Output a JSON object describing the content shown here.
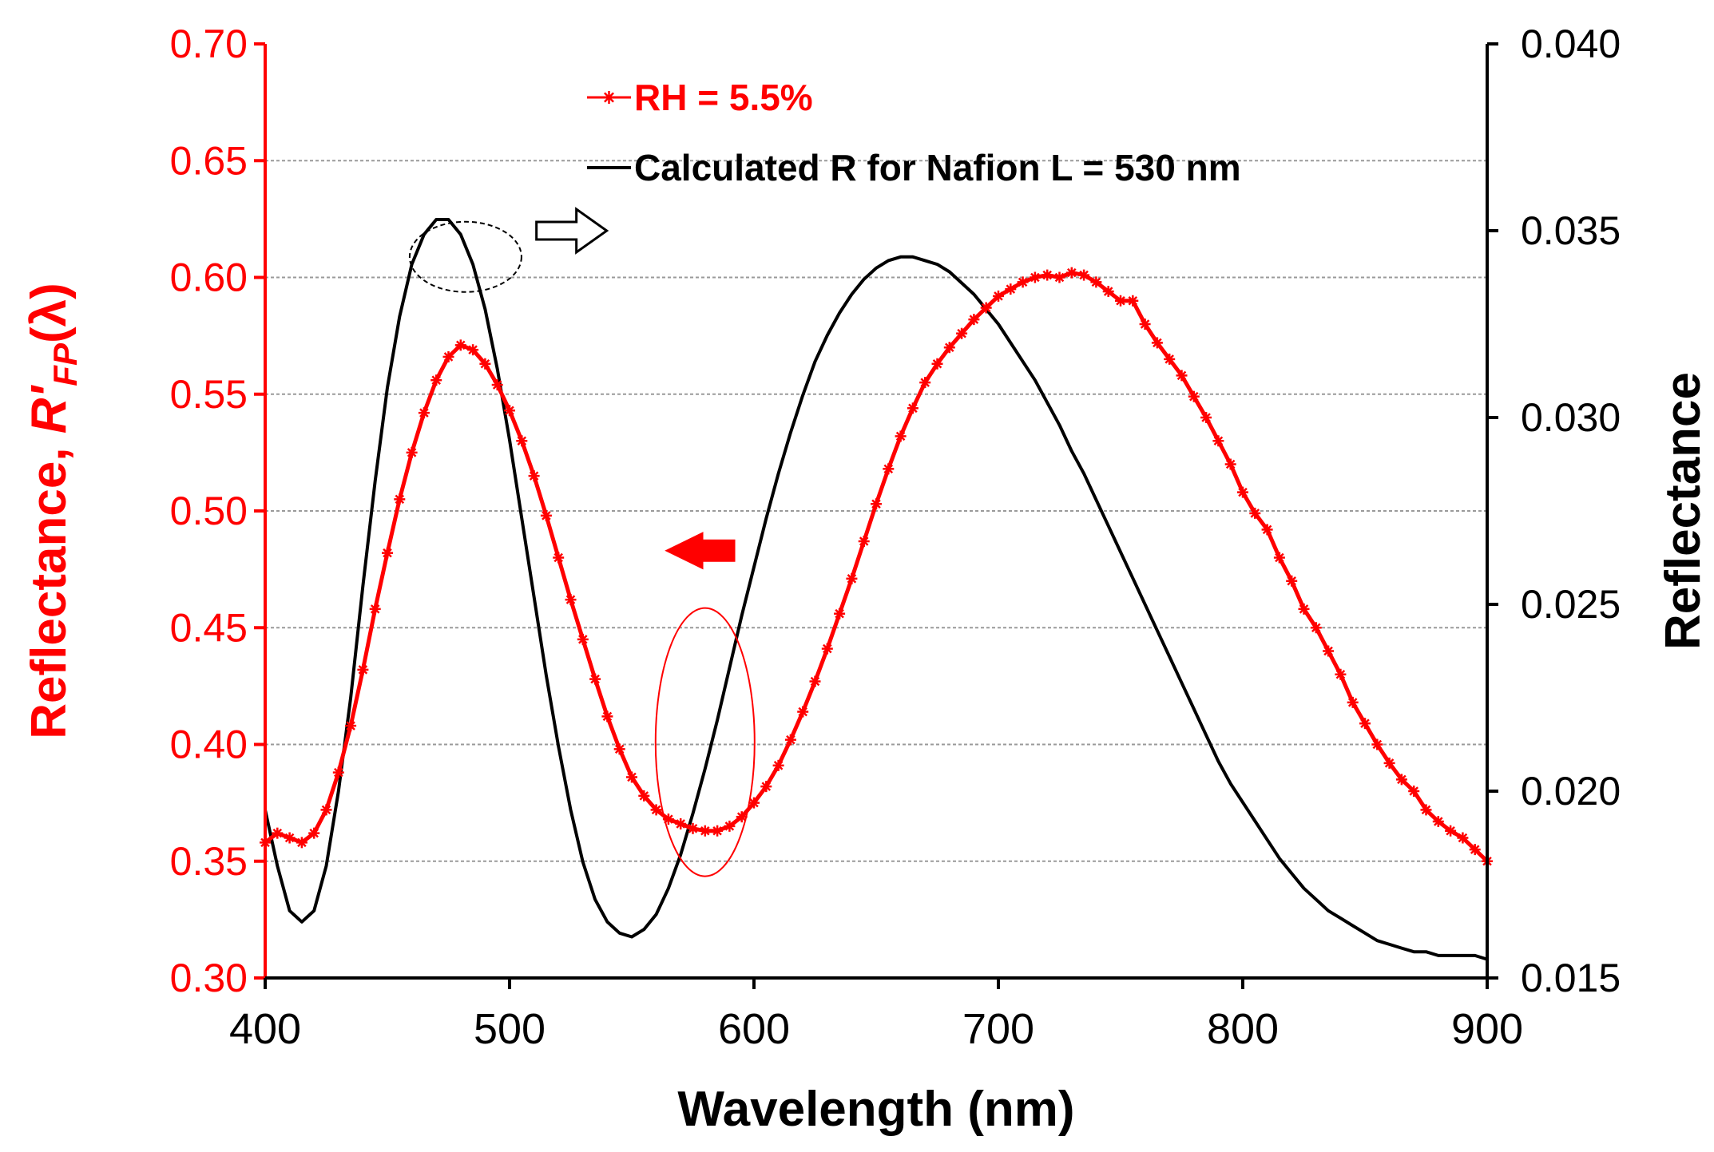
{
  "colors": {
    "measured": "#ff0000",
    "calculated": "#000000",
    "grid": "#9a9a9a",
    "left_axis": "#ff0000",
    "right_axis": "#000000"
  },
  "chart_data": {
    "type": "line",
    "title": "",
    "xlabel": "Wavelength (nm)",
    "ylabel_left": {
      "prefix": "Reflectance, ",
      "symbol": "R'",
      "subscript": "FP",
      "suffix": "(λ)"
    },
    "ylabel_right": "Reflectance",
    "xlim": [
      400,
      900
    ],
    "ylim_left": [
      0.3,
      0.7
    ],
    "ylim_right": [
      0.015,
      0.04
    ],
    "x_ticks": [
      {
        "value": 400,
        "label": "400"
      },
      {
        "value": 500,
        "label": "500"
      },
      {
        "value": 600,
        "label": "600"
      },
      {
        "value": 700,
        "label": "700"
      },
      {
        "value": 800,
        "label": "800"
      },
      {
        "value": 900,
        "label": "900"
      }
    ],
    "y_ticks_left": [
      {
        "value": 0.3,
        "label": "0.30"
      },
      {
        "value": 0.35,
        "label": "0.35"
      },
      {
        "value": 0.4,
        "label": "0.40"
      },
      {
        "value": 0.45,
        "label": "0.45"
      },
      {
        "value": 0.5,
        "label": "0.50"
      },
      {
        "value": 0.55,
        "label": "0.55"
      },
      {
        "value": 0.6,
        "label": "0.60"
      },
      {
        "value": 0.65,
        "label": "0.65"
      },
      {
        "value": 0.7,
        "label": "0.70"
      }
    ],
    "y_ticks_right": [
      {
        "value": 0.015,
        "label": "0.015"
      },
      {
        "value": 0.02,
        "label": "0.020"
      },
      {
        "value": 0.025,
        "label": "0.025"
      },
      {
        "value": 0.03,
        "label": "0.030"
      },
      {
        "value": 0.035,
        "label": "0.035"
      },
      {
        "value": 0.04,
        "label": "0.040"
      }
    ],
    "grid": "horizontal",
    "legend_position": "top-center",
    "series": [
      {
        "name": "RH = 5.5%",
        "axis": "left",
        "marker": "asterisk",
        "x": [
          400,
          405,
          410,
          415,
          420,
          425,
          430,
          435,
          440,
          445,
          450,
          455,
          460,
          465,
          470,
          475,
          480,
          485,
          490,
          495,
          500,
          505,
          510,
          515,
          520,
          525,
          530,
          535,
          540,
          545,
          550,
          555,
          560,
          565,
          570,
          575,
          580,
          585,
          590,
          595,
          600,
          605,
          610,
          615,
          620,
          625,
          630,
          635,
          640,
          645,
          650,
          655,
          660,
          665,
          670,
          675,
          680,
          685,
          690,
          695,
          700,
          705,
          710,
          715,
          720,
          725,
          730,
          735,
          740,
          745,
          750,
          755,
          760,
          765,
          770,
          775,
          780,
          785,
          790,
          795,
          800,
          805,
          810,
          815,
          820,
          825,
          830,
          835,
          840,
          845,
          850,
          855,
          860,
          865,
          870,
          875,
          880,
          885,
          890,
          895,
          900
        ],
        "y": [
          0.358,
          0.362,
          0.36,
          0.358,
          0.362,
          0.372,
          0.388,
          0.408,
          0.432,
          0.458,
          0.482,
          0.505,
          0.525,
          0.542,
          0.556,
          0.566,
          0.571,
          0.569,
          0.563,
          0.554,
          0.543,
          0.53,
          0.515,
          0.498,
          0.48,
          0.462,
          0.445,
          0.428,
          0.412,
          0.398,
          0.386,
          0.378,
          0.372,
          0.368,
          0.366,
          0.364,
          0.363,
          0.363,
          0.365,
          0.369,
          0.375,
          0.382,
          0.391,
          0.402,
          0.414,
          0.427,
          0.441,
          0.456,
          0.471,
          0.487,
          0.503,
          0.518,
          0.532,
          0.544,
          0.555,
          0.563,
          0.57,
          0.576,
          0.582,
          0.587,
          0.592,
          0.595,
          0.598,
          0.6,
          0.601,
          0.6,
          0.602,
          0.601,
          0.598,
          0.594,
          0.59,
          0.59,
          0.58,
          0.572,
          0.565,
          0.558,
          0.549,
          0.54,
          0.53,
          0.52,
          0.508,
          0.499,
          0.492,
          0.48,
          0.47,
          0.458,
          0.45,
          0.44,
          0.43,
          0.418,
          0.409,
          0.4,
          0.392,
          0.385,
          0.38,
          0.372,
          0.367,
          0.363,
          0.36,
          0.355,
          0.35
        ]
      },
      {
        "name": "Calculated R for Nafion L = 530 nm",
        "axis": "right",
        "marker": "none",
        "x": [
          400,
          405,
          410,
          415,
          420,
          425,
          430,
          435,
          440,
          445,
          450,
          455,
          460,
          465,
          470,
          475,
          480,
          485,
          490,
          495,
          500,
          505,
          510,
          515,
          520,
          525,
          530,
          535,
          540,
          545,
          550,
          555,
          560,
          565,
          570,
          575,
          580,
          585,
          590,
          595,
          600,
          605,
          610,
          615,
          620,
          625,
          630,
          635,
          640,
          645,
          650,
          655,
          660,
          665,
          670,
          675,
          680,
          685,
          690,
          695,
          700,
          705,
          710,
          715,
          720,
          725,
          730,
          735,
          740,
          745,
          750,
          755,
          760,
          765,
          770,
          775,
          780,
          785,
          790,
          795,
          800,
          805,
          810,
          815,
          820,
          825,
          830,
          835,
          840,
          845,
          850,
          855,
          860,
          865,
          870,
          875,
          880,
          885,
          890,
          895,
          900
        ],
        "y": [
          0.0195,
          0.018,
          0.0168,
          0.0165,
          0.0168,
          0.018,
          0.02,
          0.0225,
          0.0255,
          0.0283,
          0.0308,
          0.0327,
          0.0341,
          0.0349,
          0.0353,
          0.0353,
          0.0349,
          0.0341,
          0.0329,
          0.0313,
          0.0294,
          0.0273,
          0.0252,
          0.0231,
          0.0212,
          0.0195,
          0.0181,
          0.0171,
          0.0165,
          0.0162,
          0.0161,
          0.0163,
          0.0167,
          0.0174,
          0.0183,
          0.0194,
          0.0206,
          0.0219,
          0.0233,
          0.0247,
          0.026,
          0.0273,
          0.0285,
          0.0296,
          0.0306,
          0.0315,
          0.0322,
          0.0328,
          0.0333,
          0.0337,
          0.034,
          0.0342,
          0.0343,
          0.0343,
          0.0342,
          0.0341,
          0.0339,
          0.0336,
          0.0333,
          0.0329,
          0.0325,
          0.032,
          0.0315,
          0.031,
          0.0304,
          0.0298,
          0.0291,
          0.0285,
          0.0278,
          0.0271,
          0.0264,
          0.0257,
          0.025,
          0.0243,
          0.0236,
          0.0229,
          0.0222,
          0.0215,
          0.0208,
          0.0202,
          0.0197,
          0.0192,
          0.0187,
          0.0182,
          0.0178,
          0.0174,
          0.0171,
          0.0168,
          0.0166,
          0.0164,
          0.0162,
          0.016,
          0.0159,
          0.0158,
          0.0157,
          0.0157,
          0.0156,
          0.0156,
          0.0156,
          0.0156,
          0.0155
        ]
      }
    ]
  }
}
